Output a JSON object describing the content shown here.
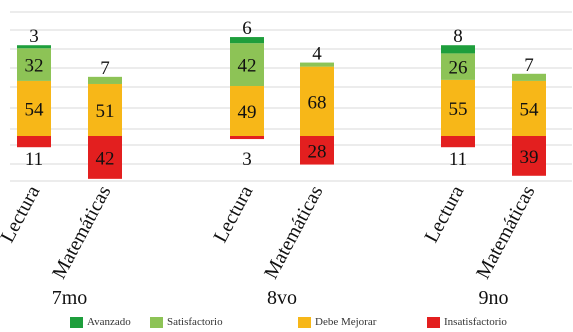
{
  "chart_data": {
    "type": "bar",
    "stacking": "diverging",
    "groups": [
      {
        "label": "7mo",
        "categories": [
          "Lectura",
          "Matemáticas"
        ]
      },
      {
        "label": "8vo",
        "categories": [
          "Lectura",
          "Matemáticas"
        ]
      },
      {
        "label": "9no",
        "categories": [
          "Lectura",
          "Matemáticas"
        ]
      }
    ],
    "series": [
      {
        "name": "Avanzado",
        "color": "#1e9e3c",
        "values": [
          3,
          0,
          6,
          0,
          8,
          0
        ]
      },
      {
        "name": "Satisfactorio",
        "color": "#8dc356",
        "values": [
          32,
          7,
          42,
          4,
          26,
          7
        ]
      },
      {
        "name": "Debe Mejorar",
        "color": "#f7b718",
        "values": [
          54,
          51,
          49,
          68,
          55,
          54
        ]
      },
      {
        "name": "Insatisfactorio",
        "color": "#e31f1f",
        "values": [
          11,
          42,
          3,
          28,
          11,
          39
        ]
      }
    ],
    "bar_labels": [
      {
        "top": "3",
        "upper": "32",
        "middle": "54",
        "bottom": "11"
      },
      {
        "top": "7",
        "upper": "",
        "middle": "51",
        "bottom": "42"
      },
      {
        "top": "6",
        "upper": "42",
        "middle": "49",
        "bottom": "3"
      },
      {
        "top": "4",
        "upper": "",
        "middle": "68",
        "bottom": "28"
      },
      {
        "top": "8",
        "upper": "26",
        "middle": "55",
        "bottom": "11"
      },
      {
        "top": "7",
        "upper": "",
        "middle": "54",
        "bottom": "39"
      }
    ],
    "grid": true,
    "legend_position": "bottom"
  }
}
